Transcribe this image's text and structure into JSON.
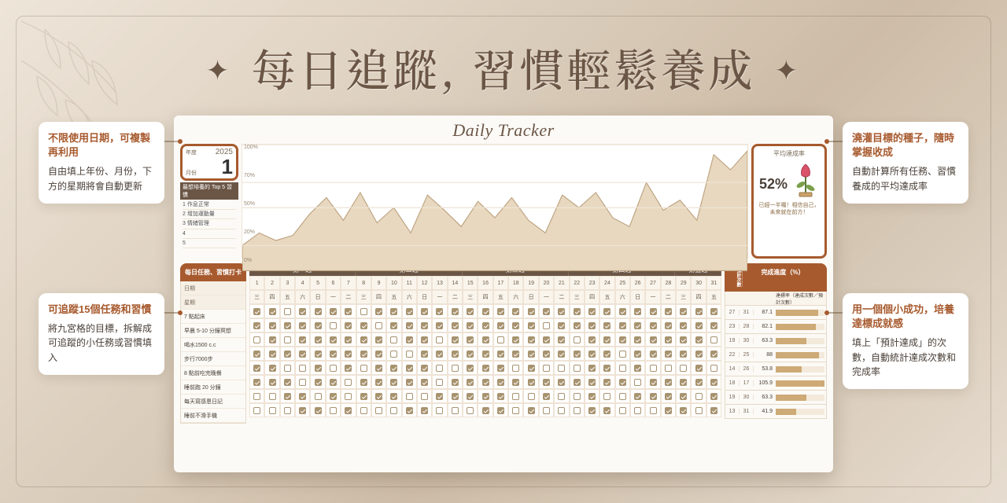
{
  "title": "每日追蹤, 習慣輕鬆養成",
  "tracker_title": "Daily Tracker",
  "callouts": {
    "left": [
      {
        "heading": "不限使用日期，可複製再利用",
        "body": "自由填上年份、月份，下方的星期將會自動更新"
      },
      {
        "heading": "可追蹤15個任務和習慣",
        "body": "將九宮格的目標，拆解成可追蹤的小任務或習慣填入"
      }
    ],
    "right": [
      {
        "heading": "澆灌目標的種子，隨時掌握收成",
        "body": "自動計算所有任務、習慣養成的平均達成率"
      },
      {
        "heading": "用一個個小成功，培養達標成就感",
        "body": "填上「預計達成」的次數，自動統計達成次數和完成率"
      }
    ]
  },
  "date": {
    "year_label": "年度",
    "year": "2025",
    "month_label": "月份",
    "month": "1"
  },
  "top5": {
    "heading": "最想培養的 Top 5 習慣",
    "items": [
      "作息正常",
      "增加運動量",
      "情緒管理",
      "",
      ""
    ]
  },
  "chart": {
    "yticks": [
      "100%",
      "70%",
      "50%",
      "20%",
      "0%"
    ],
    "ylim": [
      0,
      100
    ],
    "points_pct": [
      20,
      30,
      24,
      28,
      45,
      58,
      40,
      62,
      38,
      50,
      30,
      60,
      48,
      35,
      55,
      42,
      58,
      40,
      30,
      60,
      50,
      62,
      42,
      35,
      70,
      48,
      56,
      40,
      92,
      80,
      95
    ],
    "fill_color": "#e8d8c0",
    "line_color": "#bda37f"
  },
  "rate": {
    "label": "平均達成率",
    "value": "52%",
    "message": "已經一半囉！相信自己，未來就在前方！"
  },
  "habits": {
    "heading": "每日任務、習慣打卡",
    "meta": [
      "日期",
      "星期"
    ],
    "items": [
      "7 點起床",
      "早晨 5-10 分鐘冥想",
      "喝水1500 c.c",
      "步行7000步",
      "8 點前吃完晚餐",
      "睡前跑 20 分鐘",
      "每天寫感恩日記",
      "睡前不滑手機"
    ]
  },
  "weeks": [
    "第一週",
    "第二週",
    "第三週",
    "第四週",
    "第五週"
  ],
  "days": {
    "nums": [
      1,
      2,
      3,
      4,
      5,
      6,
      7,
      8,
      9,
      10,
      11,
      12,
      13,
      14,
      15,
      16,
      17,
      18,
      19,
      20,
      21,
      22,
      23,
      24,
      25,
      26,
      27,
      28,
      29,
      30,
      31
    ],
    "names": [
      "三",
      "四",
      "五",
      "六",
      "日",
      "一",
      "二",
      "三",
      "四",
      "五",
      "六",
      "日",
      "一",
      "二",
      "三",
      "四",
      "五",
      "六",
      "日",
      "一",
      "二",
      "三",
      "四",
      "五",
      "六",
      "日",
      "一",
      "二",
      "三",
      "四",
      "五"
    ]
  },
  "check_pattern": [
    "1101111011111111111111111111111",
    "1111101101111111111011111111111",
    "0101111110110111011110111111110",
    "1111111110011111111111110111111",
    "1100101011110011101000110100010",
    "1110110111110111111111111011111",
    "0011010111001111100100100111101",
    "0001101000110001101000110001101"
  ],
  "stats": {
    "count_head": "預計次數",
    "heading": "完成進度（%）",
    "sub": "達標率（達成次數／預計次數）",
    "rows": [
      {
        "n1": 27,
        "n2": 31,
        "pct": 87.1
      },
      {
        "n1": 23,
        "n2": 28,
        "pct": 82.1
      },
      {
        "n1": 19,
        "n2": 30,
        "pct": 63.3
      },
      {
        "n1": 22,
        "n2": 25,
        "pct": 88
      },
      {
        "n1": 14,
        "n2": 26,
        "pct": 53.8
      },
      {
        "n1": 18,
        "n2": 17,
        "pct": 105.9
      },
      {
        "n1": 19,
        "n2": 30,
        "pct": 63.3
      },
      {
        "n1": 13,
        "n2": 31,
        "pct": 41.9
      }
    ],
    "bar_color": "#cdaa76"
  },
  "colors": {
    "accent": "#a75a2e",
    "brown_dark": "#6b5646"
  }
}
